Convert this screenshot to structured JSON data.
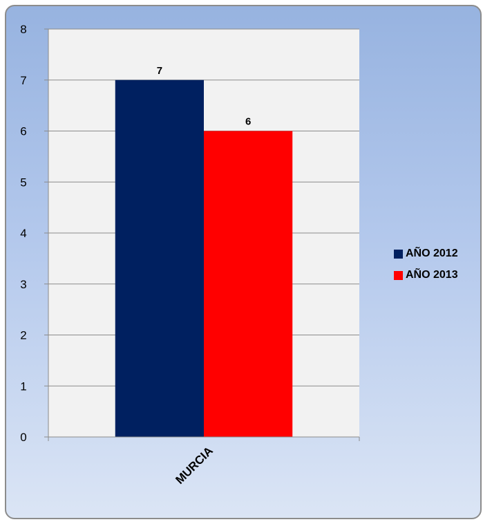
{
  "chart_data": {
    "type": "bar",
    "categories": [
      "MURCIA"
    ],
    "series": [
      {
        "name": "AÑO 2012",
        "values": [
          7
        ],
        "color": "#002060"
      },
      {
        "name": "AÑO 2013",
        "values": [
          6
        ],
        "color": "#ff0000"
      }
    ],
    "data_labels": [
      "7",
      "6"
    ],
    "title": "",
    "xlabel": "",
    "ylabel": "",
    "ylim": [
      0,
      8
    ],
    "yticks": [
      "0",
      "1",
      "2",
      "3",
      "4",
      "5",
      "6",
      "7",
      "8"
    ],
    "grid": true,
    "legend_position": "right",
    "plot_background": "#f2f2f2",
    "frame_background": "gradient light blue"
  }
}
